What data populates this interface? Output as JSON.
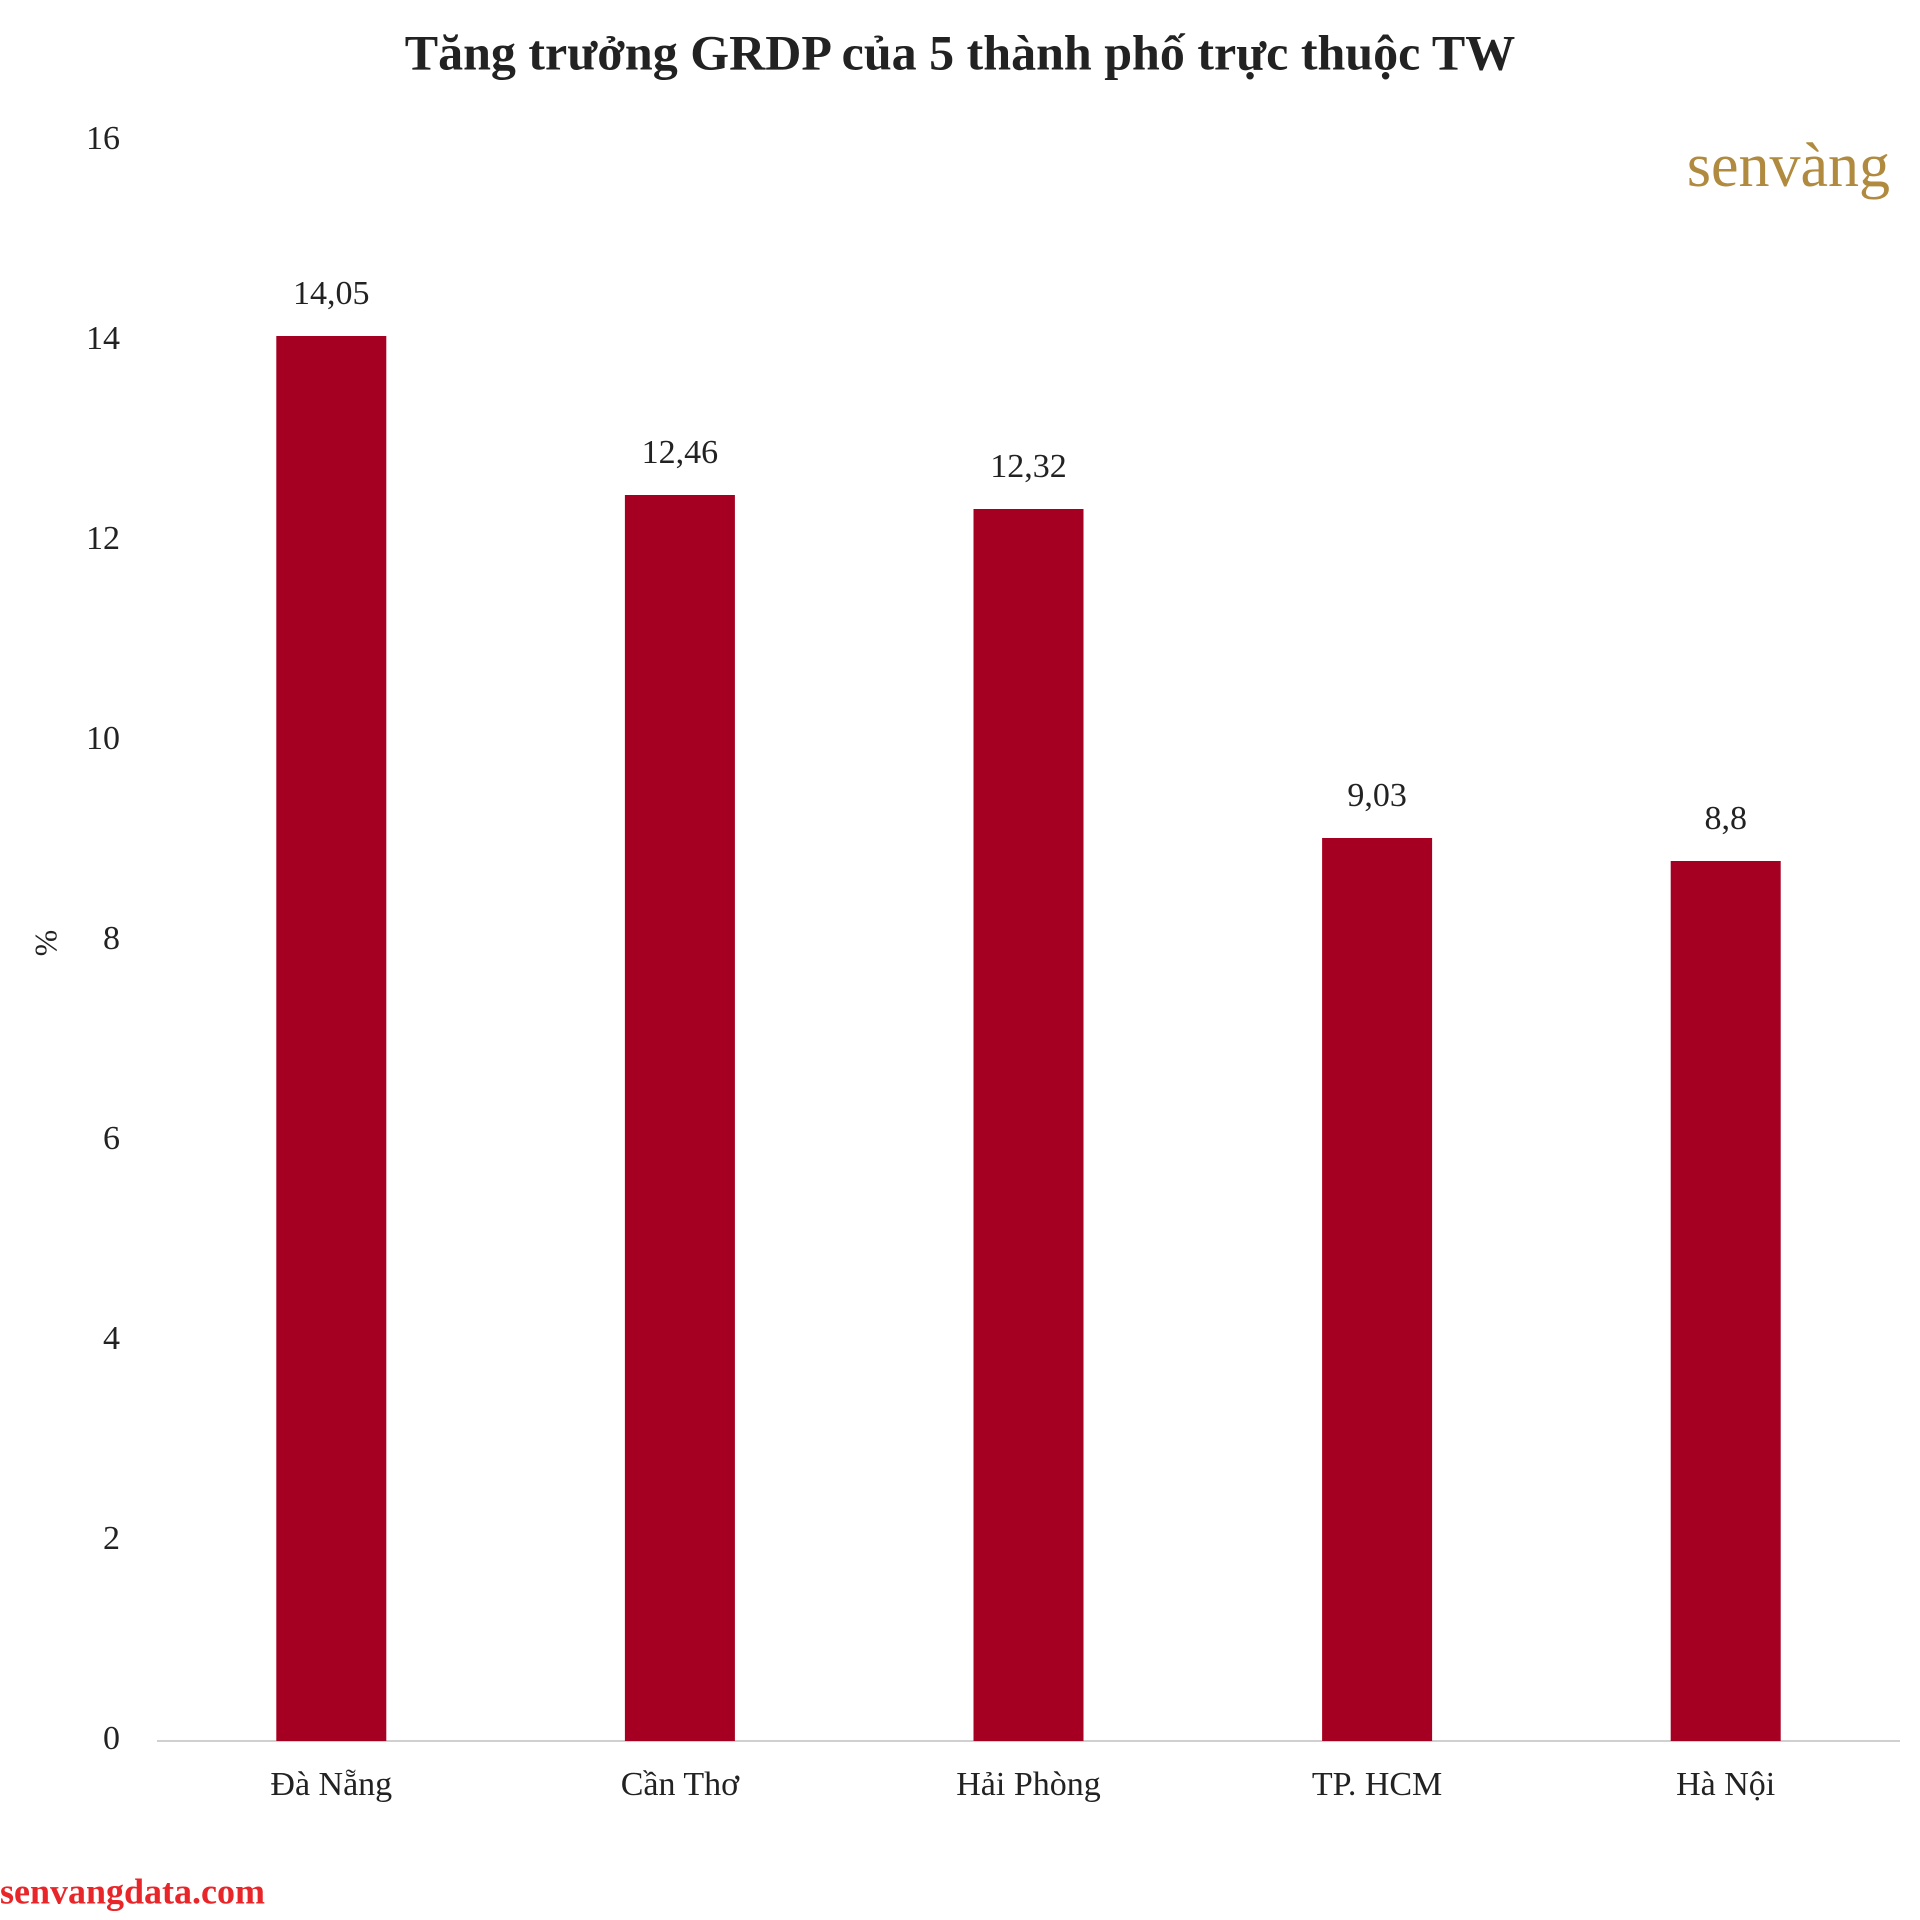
{
  "chart_data": {
    "type": "bar",
    "title": "Tăng trưởng GRDP của 5 thành phố trực thuộc TW",
    "y_label": "%",
    "categories": [
      "Đà Nẵng",
      "Cần Thơ",
      "Hải Phòng",
      "TP. HCM",
      "Hà Nội"
    ],
    "values": [
      14.05,
      12.46,
      12.32,
      9.03,
      8.8
    ],
    "value_labels": [
      "14,05",
      "12,46",
      "12,32",
      "9,03",
      "8,8"
    ],
    "color": "#a50021",
    "ylim": [
      0,
      16
    ],
    "yticks": [
      0,
      2,
      4,
      6,
      8,
      10,
      12,
      14,
      16
    ],
    "grid": false
  },
  "logo": "senvàng",
  "footer": "senvangdata.com"
}
